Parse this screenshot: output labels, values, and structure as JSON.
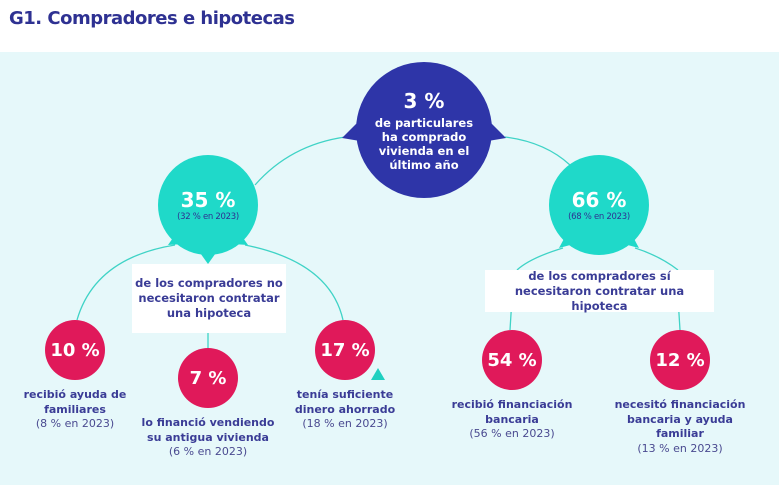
{
  "title": "G1. Compradores e hipotecas",
  "colors": {
    "dark_blue": "#2e35a8",
    "teal": "#1fd9c9",
    "pink": "#e0195a",
    "background": "#e6f8fa",
    "text": "#3a3c96"
  },
  "top": {
    "value": "3 %",
    "label": "de particulares ha comprado vivienda en el último año"
  },
  "left_branch": {
    "value": "35 %",
    "prev": "(32 % en 2023)",
    "label": "de los compradores no necesitaron contratar una hipoteca",
    "children": [
      {
        "value": "10 %",
        "label": "recibió ayuda de familiares",
        "prev": "(8 % en 2023)"
      },
      {
        "value": "7 %",
        "label": "lo financió vendiendo su antigua vivienda",
        "prev": "(6 % en 2023)"
      },
      {
        "value": "17 %",
        "label": "tenía suficiente dinero ahorrado",
        "prev": "(18 % en 2023)",
        "trend_icon": "triangle-up-icon"
      }
    ]
  },
  "right_branch": {
    "value": "66 %",
    "prev": "(68 % en 2023)",
    "label": "de los compradores sí necesitaron contratar una hipoteca",
    "children": [
      {
        "value": "54 %",
        "label": "recibió financiación bancaria",
        "prev": "(56 % en 2023)"
      },
      {
        "value": "12 %",
        "label": "necesitó financiación bancaria y ayuda familiar",
        "prev": "(13 % en 2023)"
      }
    ]
  }
}
